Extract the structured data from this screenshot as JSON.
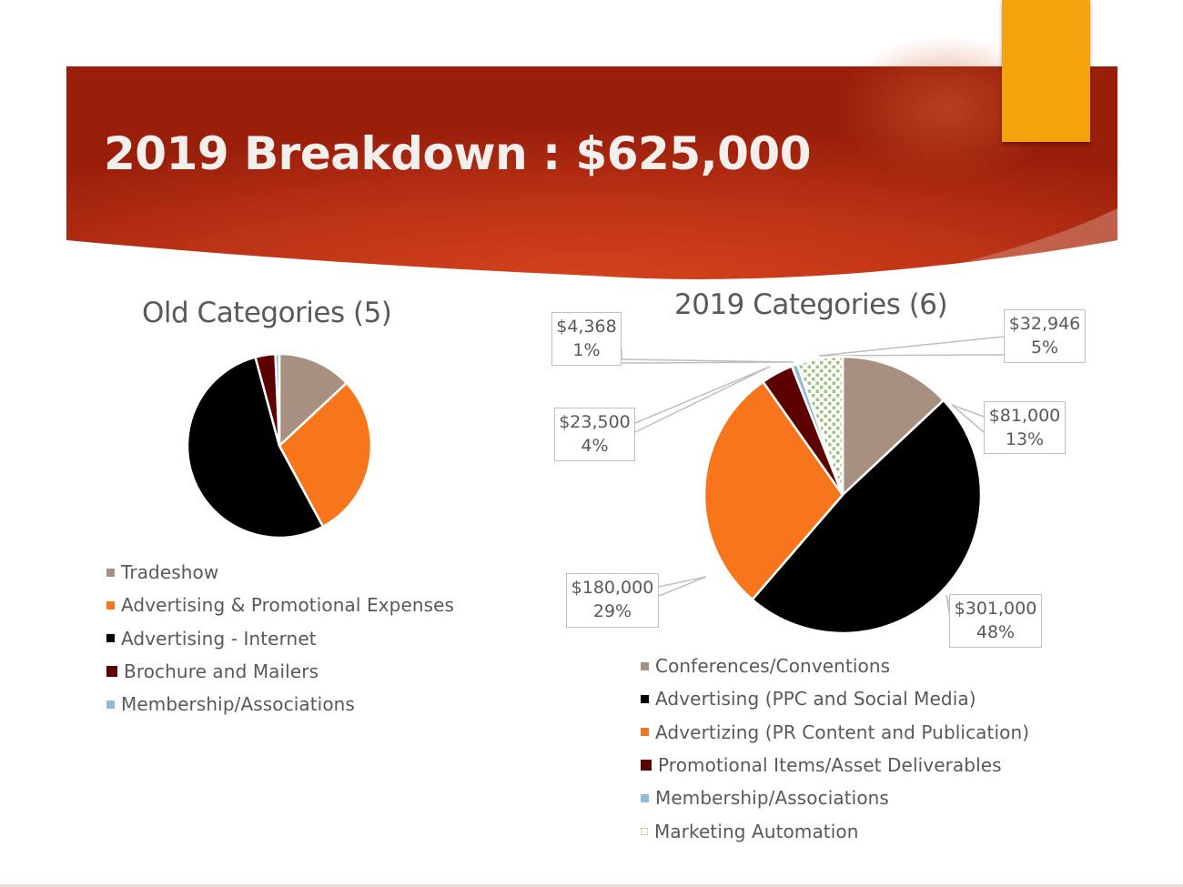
{
  "slide": {
    "title": "2019 Breakdown : $625,000",
    "colors": {
      "banner_dark": "#9a1f0b",
      "banner_light": "#d6441c",
      "accent_tab": "#f5a30a",
      "text_gray": "#595959"
    }
  },
  "chart_data": [
    {
      "type": "pie",
      "title": "Old Categories (5)",
      "legend_position": "bottom",
      "categories": [
        "Tradeshow",
        "Advertising & Promotional Expenses",
        "Advertising - Internet",
        "Brochure and Mailers",
        "Membership/Associations"
      ],
      "values": [
        13,
        29,
        53.5,
        3.5,
        0.7
      ],
      "value_units": "approx. percent (unlabeled in figure)",
      "colors": [
        "#a89080",
        "#f7761b",
        "#000000",
        "#5c0000",
        "#8fbcd6"
      ],
      "data_labels": false
    },
    {
      "type": "pie",
      "title": "2019 Categories (6)",
      "legend_position": "bottom",
      "categories": [
        "Conferences/Conventions",
        "Advertising (PPC and Social Media)",
        "Advertizing (PR Content and Publication)",
        "Promotional Items/Asset Deliverables",
        "Membership/Associations",
        "Marketing Automation"
      ],
      "values": [
        81000,
        301000,
        180000,
        23500,
        4368,
        32946
      ],
      "labels": [
        {
          "amount": "$81,000",
          "percent": "13%"
        },
        {
          "amount": "$301,000",
          "percent": "48%"
        },
        {
          "amount": "$180,000",
          "percent": "29%"
        },
        {
          "amount": "$23,500",
          "percent": "4%"
        },
        {
          "amount": "$4,368",
          "percent": "1%"
        },
        {
          "amount": "$32,946",
          "percent": "5%"
        }
      ],
      "colors": [
        "#a89080",
        "#000000",
        "#f7761b",
        "#5c0000",
        "#8fbcd6",
        "#9cc47e"
      ],
      "patterns": [
        "solid",
        "solid",
        "solid",
        "solid",
        "solid",
        "dotted"
      ],
      "data_labels": true
    }
  ]
}
